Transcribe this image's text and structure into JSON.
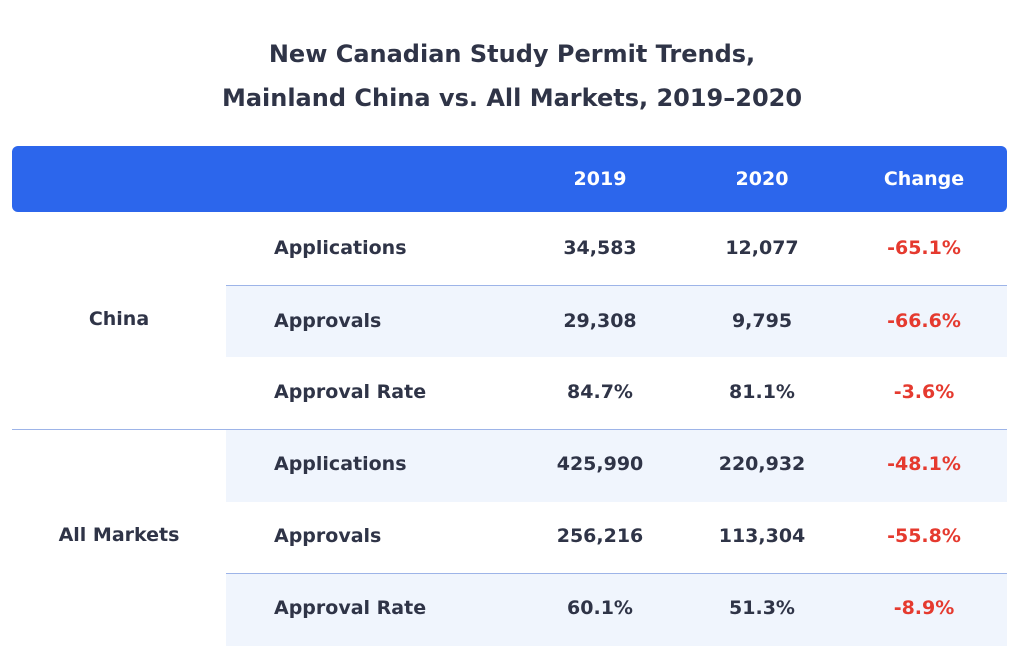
{
  "title_line1": "New Canadian Study Permit Trends,",
  "title_line2": "Mainland China vs. All Markets, 2019–2020",
  "header": {
    "col_2019": "2019",
    "col_2020": "2020",
    "col_change": "Change"
  },
  "chart_data": {
    "type": "table",
    "columns": [
      "",
      "",
      "2019",
      "2020",
      "Change"
    ],
    "groups": [
      {
        "name": "China",
        "rows": [
          {
            "metric": "Applications",
            "y2019": "34,583",
            "y2020": "12,077",
            "change": "-65.1%"
          },
          {
            "metric": "Approvals",
            "y2019": "29,308",
            "y2020": "9,795",
            "change": "-66.6%"
          },
          {
            "metric": "Approval Rate",
            "y2019": "84.7%",
            "y2020": "81.1%",
            "change": "-3.6%"
          }
        ]
      },
      {
        "name": "All Markets",
        "rows": [
          {
            "metric": "Applications",
            "y2019": "425,990",
            "y2020": "220,932",
            "change": "-48.1%"
          },
          {
            "metric": "Approvals",
            "y2019": "256,216",
            "y2020": "113,304",
            "change": "-55.8%"
          },
          {
            "metric": "Approval Rate",
            "y2019": "60.1%",
            "y2020": "51.3%",
            "change": "-8.9%"
          }
        ]
      }
    ]
  },
  "colors": {
    "header_bg": "#2c66ec",
    "header_text": "#ffffff",
    "band_bg": "#f0f5fd",
    "negative_change": "#e53a2f",
    "text": "#2f3447",
    "divider": "#9db4e8"
  }
}
